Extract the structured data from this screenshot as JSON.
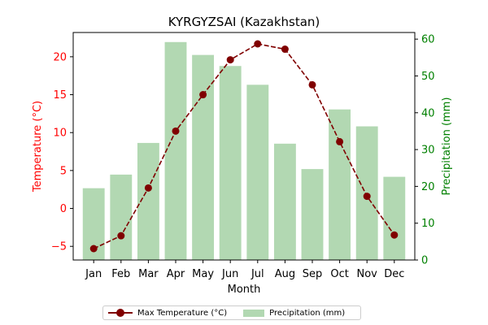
{
  "chart_data": {
    "type": "bar+line",
    "title": "KYRGYZSAI (Kazakhstan)",
    "xlabel": "Month",
    "categories": [
      "Jan",
      "Feb",
      "Mar",
      "Apr",
      "May",
      "Jun",
      "Jul",
      "Aug",
      "Sep",
      "Oct",
      "Nov",
      "Dec"
    ],
    "temperature": {
      "name": "Max Temperature (°C)",
      "axis_label": "Temperature (°C)",
      "color": "#800000",
      "axis_color": "#ff0000",
      "values": [
        -5.3,
        -3.6,
        2.7,
        10.2,
        15.0,
        19.6,
        21.7,
        21.0,
        16.3,
        8.8,
        1.6,
        -3.5
      ],
      "ylim": [
        -6.8,
        23.2
      ],
      "ticks": [
        -5,
        0,
        5,
        10,
        15,
        20
      ]
    },
    "precipitation": {
      "name": "Precipitation (mm)",
      "axis_label": "Precipitation (mm)",
      "color": "#b2d8b2",
      "axis_color": "#008000",
      "values": [
        19.5,
        23.2,
        31.8,
        59.2,
        55.7,
        52.7,
        47.6,
        31.6,
        24.7,
        40.9,
        36.3,
        22.6
      ],
      "ylim": [
        0,
        61.8
      ],
      "ticks": [
        0,
        10,
        20,
        30,
        40,
        50,
        60
      ]
    },
    "legend_position": "bottom-center"
  }
}
